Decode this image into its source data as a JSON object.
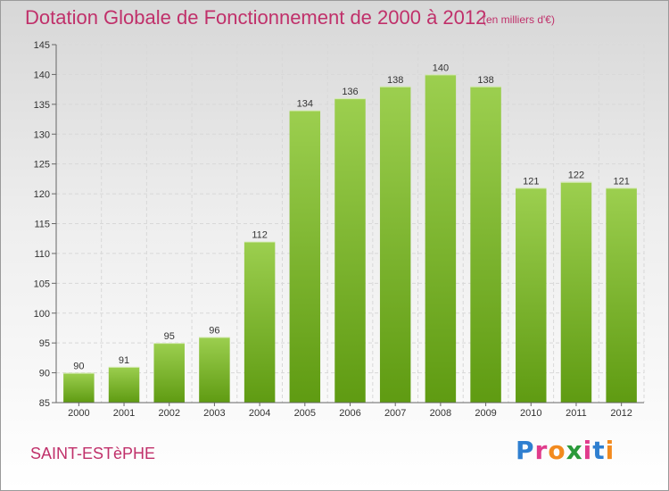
{
  "header": {
    "title": "Dotation Globale de Fonctionnement de 2000 à 2012",
    "subtitle": "(en milliers d'€)"
  },
  "footer": {
    "commune": "SAINT-ESTèPHE",
    "logo": "Proxiti",
    "logo_colors": [
      "#2f7fd0",
      "#e03c8c",
      "#f28a1e",
      "#2a9a3a",
      "#e03c8c",
      "#2f7fd0",
      "#f28a1e"
    ]
  },
  "chart_data": {
    "type": "bar",
    "categories": [
      "2000",
      "2001",
      "2002",
      "2003",
      "2004",
      "2005",
      "2006",
      "2007",
      "2008",
      "2009",
      "2010",
      "2011",
      "2012"
    ],
    "values": [
      90,
      91,
      95,
      96,
      112,
      134,
      136,
      138,
      140,
      138,
      121,
      122,
      121
    ],
    "ylim": [
      85,
      145
    ],
    "yticks": [
      85,
      90,
      95,
      100,
      105,
      110,
      115,
      120,
      125,
      130,
      135,
      140,
      145
    ],
    "grid": true,
    "bar_color_top": "#9ccf4f",
    "bar_color_bottom": "#5f9b12"
  }
}
